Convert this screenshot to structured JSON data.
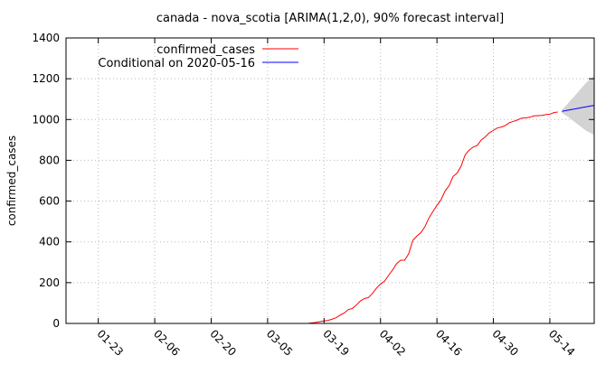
{
  "chart_data": {
    "type": "line",
    "title": "canada - nova_scotia [ARIMA(1,2,0), 90% forecast interval]",
    "xlabel": "",
    "ylabel": "confirmed_cases",
    "x_range": [
      "2020-01-15",
      "2020-05-25"
    ],
    "ylim": [
      0,
      1400
    ],
    "y_ticks": [
      0,
      200,
      400,
      600,
      800,
      1000,
      1200,
      1400
    ],
    "x_ticks": [
      {
        "label": "01-23",
        "date": "2020-01-23"
      },
      {
        "label": "02-06",
        "date": "2020-02-06"
      },
      {
        "label": "02-20",
        "date": "2020-02-20"
      },
      {
        "label": "03-05",
        "date": "2020-03-05"
      },
      {
        "label": "03-19",
        "date": "2020-03-19"
      },
      {
        "label": "04-02",
        "date": "2020-04-02"
      },
      {
        "label": "04-16",
        "date": "2020-04-16"
      },
      {
        "label": "04-30",
        "date": "2020-04-30"
      },
      {
        "label": "05-14",
        "date": "2020-05-14"
      }
    ],
    "grid": true,
    "legend_position": "top-left",
    "series": [
      {
        "name": "confirmed_cases",
        "color": "#ff0000",
        "points": [
          [
            "2020-03-15",
            0
          ],
          [
            "2020-03-16",
            3
          ],
          [
            "2020-03-17",
            5
          ],
          [
            "2020-03-18",
            9
          ],
          [
            "2020-03-19",
            12
          ],
          [
            "2020-03-20",
            15
          ],
          [
            "2020-03-21",
            21
          ],
          [
            "2020-03-22",
            28
          ],
          [
            "2020-03-23",
            41
          ],
          [
            "2020-03-24",
            51
          ],
          [
            "2020-03-25",
            68
          ],
          [
            "2020-03-26",
            73
          ],
          [
            "2020-03-27",
            90
          ],
          [
            "2020-03-28",
            110
          ],
          [
            "2020-03-29",
            122
          ],
          [
            "2020-03-30",
            127
          ],
          [
            "2020-03-31",
            147
          ],
          [
            "2020-04-01",
            173
          ],
          [
            "2020-04-02",
            193
          ],
          [
            "2020-04-03",
            207
          ],
          [
            "2020-04-04",
            236
          ],
          [
            "2020-04-05",
            262
          ],
          [
            "2020-04-06",
            293
          ],
          [
            "2020-04-07",
            310
          ],
          [
            "2020-04-08",
            310
          ],
          [
            "2020-04-09",
            342
          ],
          [
            "2020-04-10",
            407
          ],
          [
            "2020-04-11",
            428
          ],
          [
            "2020-04-12",
            445
          ],
          [
            "2020-04-13",
            474
          ],
          [
            "2020-04-14",
            517
          ],
          [
            "2020-04-15",
            549
          ],
          [
            "2020-04-16",
            579
          ],
          [
            "2020-04-17",
            606
          ],
          [
            "2020-04-18",
            649
          ],
          [
            "2020-04-19",
            675
          ],
          [
            "2020-04-20",
            721
          ],
          [
            "2020-04-21",
            737
          ],
          [
            "2020-04-22",
            772
          ],
          [
            "2020-04-23",
            827
          ],
          [
            "2020-04-24",
            850
          ],
          [
            "2020-04-25",
            865
          ],
          [
            "2020-04-26",
            873
          ],
          [
            "2020-04-27",
            900
          ],
          [
            "2020-04-28",
            915
          ],
          [
            "2020-04-29",
            935
          ],
          [
            "2020-04-30",
            947
          ],
          [
            "2020-05-01",
            959
          ],
          [
            "2020-05-02",
            963
          ],
          [
            "2020-05-03",
            971
          ],
          [
            "2020-05-04",
            985
          ],
          [
            "2020-05-05",
            991
          ],
          [
            "2020-05-06",
            998
          ],
          [
            "2020-05-07",
            1007
          ],
          [
            "2020-05-08",
            1008
          ],
          [
            "2020-05-09",
            1011
          ],
          [
            "2020-05-10",
            1018
          ],
          [
            "2020-05-11",
            1019
          ],
          [
            "2020-05-12",
            1020
          ],
          [
            "2020-05-13",
            1024
          ],
          [
            "2020-05-14",
            1026
          ],
          [
            "2020-05-15",
            1034
          ],
          [
            "2020-05-16",
            1037
          ]
        ]
      },
      {
        "name": "Conditional on 2020-05-16",
        "color": "#0000ff",
        "points": [
          [
            "2020-05-17",
            1040
          ],
          [
            "2020-05-18",
            1044
          ],
          [
            "2020-05-19",
            1048
          ],
          [
            "2020-05-20",
            1051
          ],
          [
            "2020-05-21",
            1055
          ],
          [
            "2020-05-22",
            1059
          ],
          [
            "2020-05-23",
            1062
          ],
          [
            "2020-05-24",
            1066
          ],
          [
            "2020-05-25",
            1069
          ]
        ]
      }
    ],
    "forecast_interval": {
      "level": "90%",
      "color": "#d3d3d3",
      "points": [
        [
          "2020-05-17",
          1032,
          1048
        ],
        [
          "2020-05-18",
          1020,
          1068
        ],
        [
          "2020-05-19",
          1005,
          1091
        ],
        [
          "2020-05-20",
          990,
          1112
        ],
        [
          "2020-05-21",
          975,
          1135
        ],
        [
          "2020-05-22",
          960,
          1158
        ],
        [
          "2020-05-23",
          945,
          1180
        ],
        [
          "2020-05-24",
          935,
          1198
        ],
        [
          "2020-05-25",
          925,
          1214
        ]
      ]
    }
  }
}
